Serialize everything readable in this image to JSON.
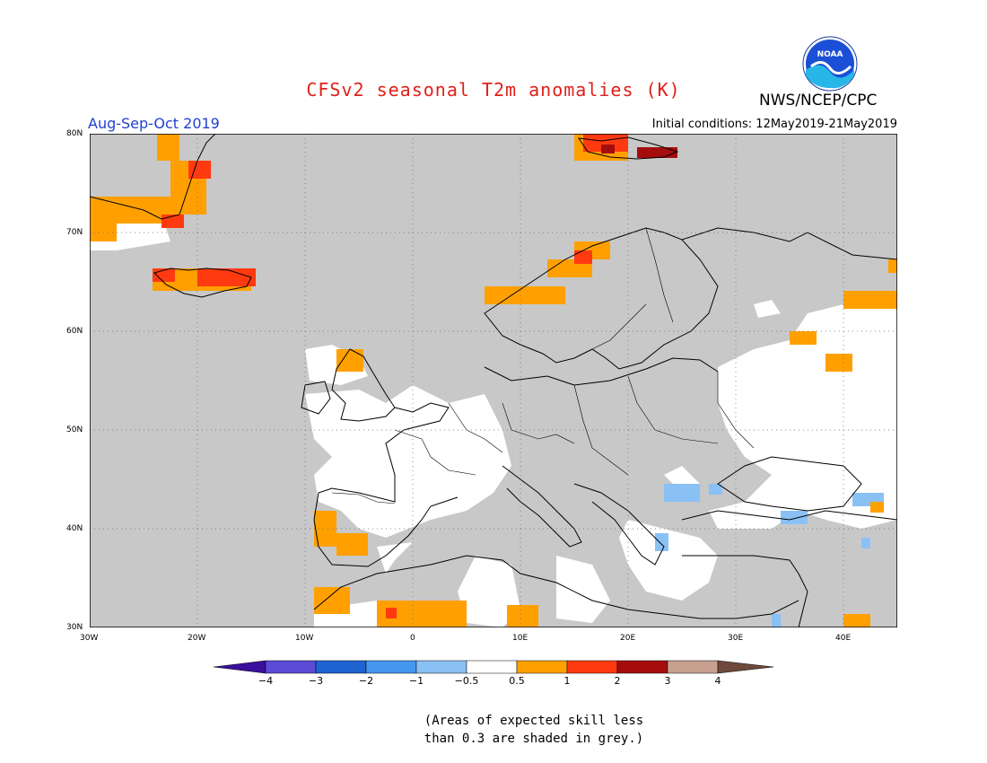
{
  "header": {
    "title": "CFSv2 seasonal T2m anomalies (K)",
    "agency": "NWS/NCEP/CPC",
    "period": "Aug-Sep-Oct 2019",
    "initial_conditions": "Initial conditions: 12May2019-21May2019",
    "logo_text": "NOAA"
  },
  "map": {
    "region": "Europe",
    "background_color": "#c8c8c8",
    "lat_labels": [
      "80N",
      "70N",
      "60N",
      "50N",
      "40N",
      "30N"
    ],
    "lon_labels": [
      "30W",
      "20W",
      "10W",
      "0",
      "10E",
      "20E",
      "30E",
      "40E"
    ]
  },
  "legend": {
    "colors": [
      "#3a0f9c",
      "#5a4cd6",
      "#1f63d1",
      "#4596ef",
      "#8ac1f5",
      "#ffffff",
      "#ffa000",
      "#ff3a10",
      "#a50d0d",
      "#c8a090",
      "#6e4a3c"
    ],
    "labels": [
      "−4",
      "−3",
      "−2",
      "−1",
      "−0.5",
      "0.5",
      "1",
      "2",
      "3",
      "4"
    ]
  },
  "note": {
    "line1": "(Areas of expected skill less",
    "line2": "than 0.3 are shaded in grey.)"
  }
}
